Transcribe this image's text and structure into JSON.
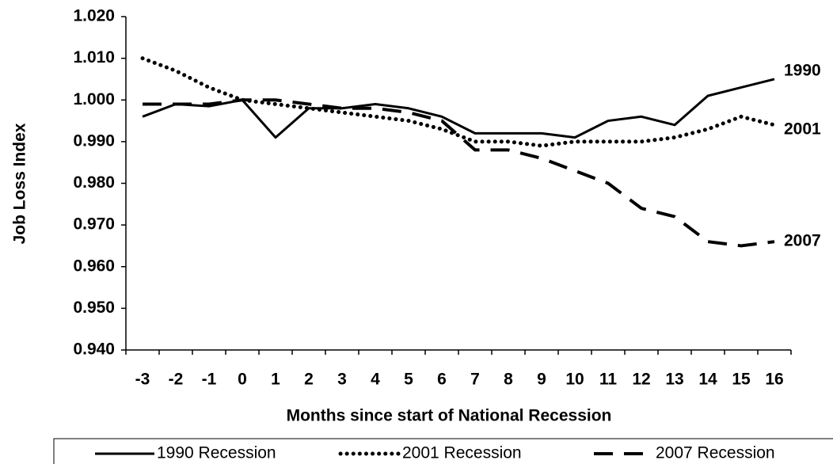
{
  "chart_data": {
    "type": "line",
    "x_label": "Months since start of National Recession",
    "y_label": "Job Loss Index",
    "categories": [
      "-3",
      "-2",
      "-1",
      "0",
      "1",
      "2",
      "3",
      "4",
      "5",
      "6",
      "7",
      "8",
      "9",
      "10",
      "11",
      "12",
      "13",
      "14",
      "15",
      "16"
    ],
    "ylim": [
      0.94,
      1.02
    ],
    "yticks": [
      {
        "value": 0.94,
        "label": "0.940"
      },
      {
        "value": 0.95,
        "label": "0.950"
      },
      {
        "value": 0.96,
        "label": "0.960"
      },
      {
        "value": 0.97,
        "label": "0.970"
      },
      {
        "value": 0.98,
        "label": "0.980"
      },
      {
        "value": 0.99,
        "label": "0.990"
      },
      {
        "value": 1.0,
        "label": "1.000"
      },
      {
        "value": 1.01,
        "label": "1.010"
      },
      {
        "value": 1.02,
        "label": "1.020"
      }
    ],
    "grid": false,
    "legend": "bottom",
    "series": [
      {
        "name": "1990 Recession",
        "end_label": "1990",
        "color": "#000000",
        "line_style": "solid",
        "values": [
          0.996,
          0.999,
          0.9985,
          1.0,
          0.991,
          0.998,
          0.998,
          0.999,
          0.998,
          0.996,
          0.992,
          0.992,
          0.992,
          0.991,
          0.995,
          0.996,
          0.994,
          1.001,
          1.003,
          1.005
        ]
      },
      {
        "name": "2001 Recession",
        "end_label": "2001",
        "color": "#000000",
        "line_style": "dotted",
        "values": [
          1.01,
          1.007,
          1.003,
          1.0,
          0.999,
          0.998,
          0.997,
          0.996,
          0.995,
          0.993,
          0.99,
          0.99,
          0.989,
          0.99,
          0.99,
          0.99,
          0.991,
          0.993,
          0.996,
          0.994
        ]
      },
      {
        "name": "2007 Recession",
        "end_label": "2007",
        "color": "#000000",
        "line_style": "dashed",
        "values": [
          0.999,
          0.999,
          0.999,
          1.0,
          1.0,
          0.999,
          0.998,
          0.998,
          0.997,
          0.995,
          0.988,
          0.988,
          0.986,
          0.983,
          0.98,
          0.974,
          0.972,
          0.966,
          0.965,
          0.966
        ]
      }
    ]
  }
}
